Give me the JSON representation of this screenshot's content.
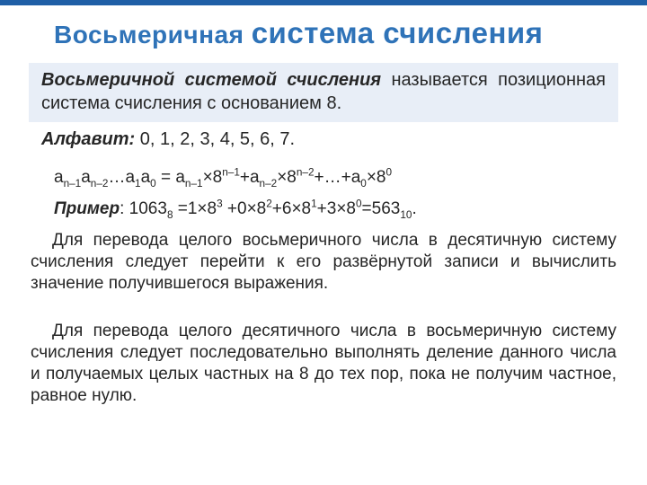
{
  "colors": {
    "title_color": "#2f73b8",
    "text_color": "#262626",
    "defbox_bg": "#e8eef7",
    "alphabet_text": "#262626",
    "body_text": "#262626",
    "top_strip": "#1f5fa6"
  },
  "title": {
    "part1": "Восьмеричная ",
    "part2": "система счисления"
  },
  "definition": {
    "term": "Восьмеричной системой счисления",
    "rest": " называется позиционная система счисления с основанием 8."
  },
  "alphabet": {
    "label": "Алфавит:",
    "values": " 0, 1, 2, 3, 4, 5, 6, 7."
  },
  "formula_html": "a<sub>n–1</sub>a<sub>n–2</sub>…a<sub>1</sub>a<sub>0</sub> = a<sub>n–1</sub>×8<sup>n–1</sup>+a<sub>n–2</sub>×8<sup>n–2</sup>+…+a<sub>0</sub>×8<sup>0</sup>",
  "example": {
    "label": "Пример",
    "body_html": ": 1063<sub>8</sub> =1×8<sup>3</sup> +0×8<sup>2</sup>+6×8<sup>1</sup>+3×8<sup>0</sup>=563<sub>10</sub>."
  },
  "para1": "Для перевода целого восьмеричного числа в десятичную систему счисления следует перейти к его развёрнутой записи и вычислить значение получившегося выражения.",
  "para2": "Для перевода целого десятичного числа в восьмеричную систему счисления следует последовательно выполнять деление данного числа и получаемых целых частных на 8 до тех пор, пока не получим частное, равное нулю."
}
